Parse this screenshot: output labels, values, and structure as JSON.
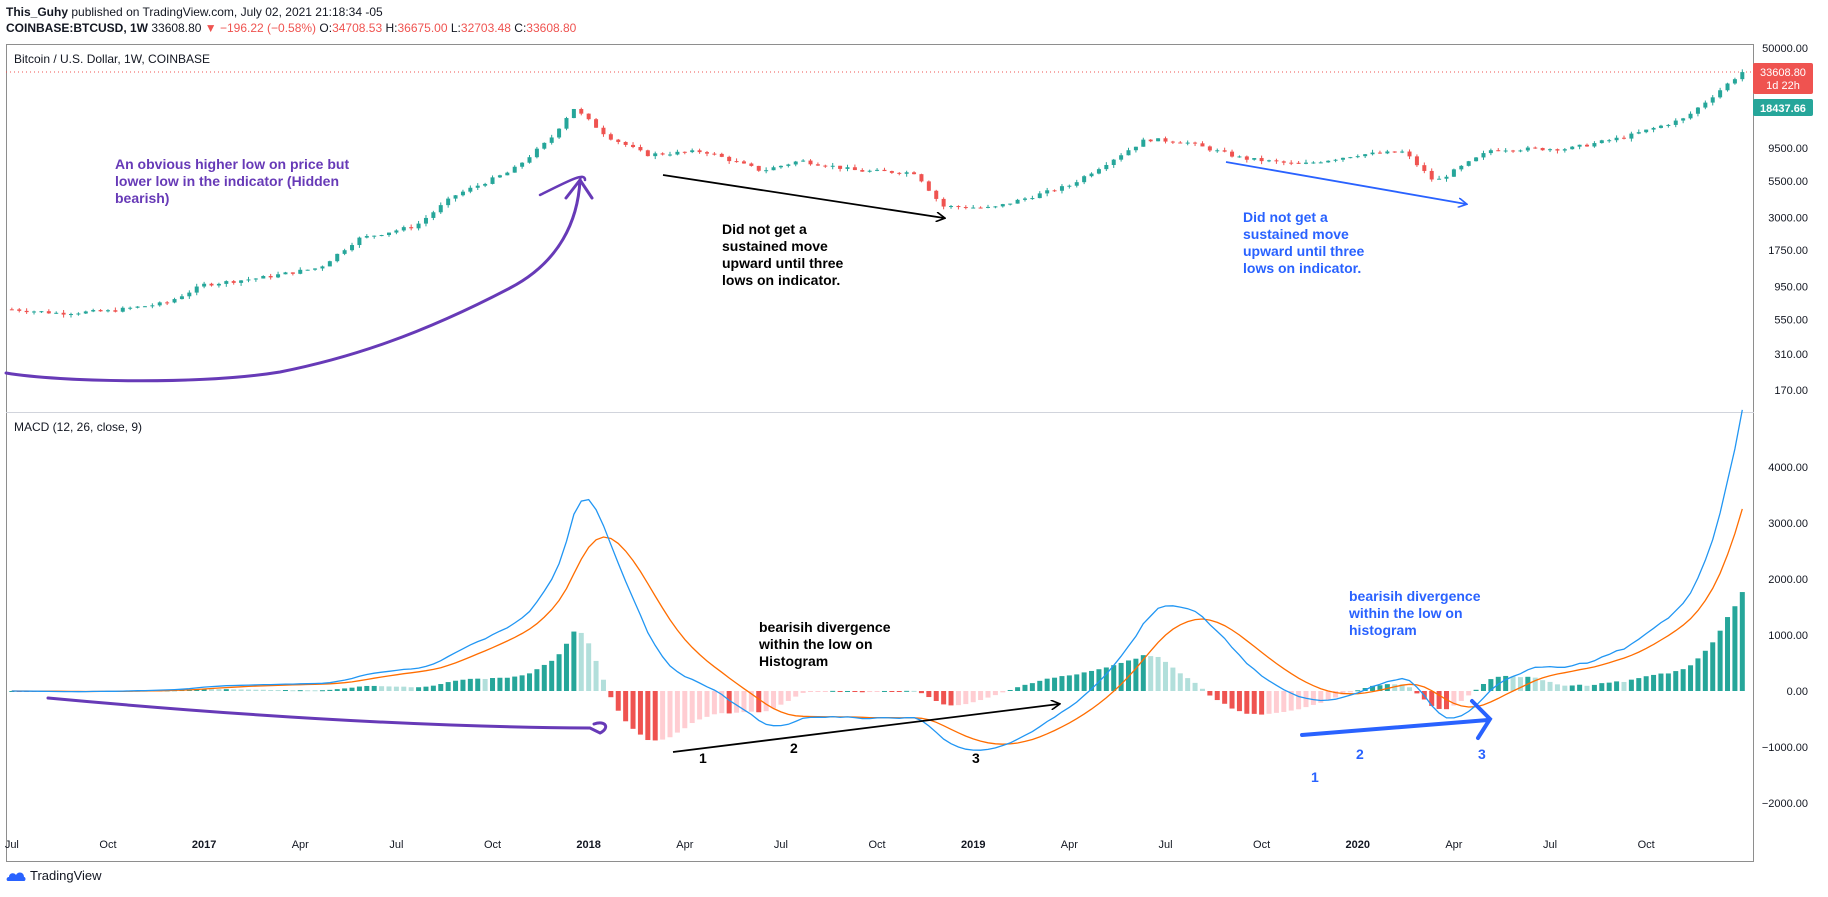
{
  "header": {
    "author": "This_Guhy",
    "published_text": "published on TradingView.com, July 02, 2021 21:18:34 -05",
    "symbol": "COINBASE:BTCUSD, 1W",
    "last": "33608.80",
    "change": "▼ −196.22 (−0.58%)",
    "o_label": "O:",
    "o_value": "34708.53",
    "h_label": "H:",
    "h_value": "36675.00",
    "l_label": "L:",
    "l_value": "32703.48",
    "c_label": "C:",
    "c_value": "33608.80"
  },
  "price_pane": {
    "title": "Bitcoin / U.S. Dollar, 1W, COINBASE"
  },
  "macd_pane": {
    "title": "MACD (12, 26, close, 9)"
  },
  "annotations": {
    "purple_note": [
      "An obvious higher low on price but",
      "lower low in the indicator (Hidden",
      "bearish)"
    ],
    "black_note": [
      "Did not get a",
      "sustained move",
      "upward until three",
      "lows on indicator."
    ],
    "blue_note": [
      "Did not get a",
      "sustained move",
      "upward until three",
      "lows on indicator."
    ],
    "black_hist_note": [
      "bearisih divergence",
      "within the low on",
      "Histogram"
    ],
    "blue_hist_note": [
      "bearisih divergence",
      "within the low on",
      "histogram"
    ],
    "black_low_labels": [
      "1",
      "2",
      "3"
    ],
    "blue_low_labels": [
      "1",
      "2",
      "3"
    ]
  },
  "price_badges": {
    "last_price": "33608.80",
    "countdown": "1d 22h",
    "ma_price": "18437.66"
  },
  "footer": {
    "brand": "TradingView"
  },
  "colors": {
    "up": "#26a69a",
    "down": "#ef5350",
    "hist_up_weak": "#b2dfdb",
    "hist_down_weak": "#ffcdd2",
    "macd": "#2196f3",
    "signal": "#ff6d00",
    "purple": "#673ab7",
    "blue_note": "#2962ff"
  },
  "chart_data": [
    {
      "type": "candlestick",
      "title": "Bitcoin / U.S. Dollar, 1W, COINBASE",
      "y_scale": "log",
      "y_ticks": [
        "50000.00",
        "33608.80",
        "18437.66",
        "9500.00",
        "5500.00",
        "3000.00",
        "1750.00",
        "950.00",
        "550.00",
        "310.00",
        "170.00"
      ],
      "y_tick_values": [
        50000,
        9500,
        5500,
        3000,
        1750,
        950,
        550,
        310,
        170
      ],
      "x_ticks": [
        "Jul",
        "Oct",
        "2017",
        "Apr",
        "Jul",
        "Oct",
        "2018",
        "Apr",
        "Jul",
        "Oct",
        "2019",
        "Apr",
        "Jul",
        "Oct",
        "2020",
        "Apr",
        "Jul",
        "Oct"
      ],
      "close_anchors": [
        [
          2016.5,
          650
        ],
        [
          2016.62,
          610
        ],
        [
          2016.75,
          630
        ],
        [
          2016.9,
          720
        ],
        [
          2017.0,
          980
        ],
        [
          2017.15,
          1100
        ],
        [
          2017.3,
          1300
        ],
        [
          2017.4,
          2100
        ],
        [
          2017.55,
          2600
        ],
        [
          2017.65,
          4300
        ],
        [
          2017.8,
          6500
        ],
        [
          2017.9,
          11000
        ],
        [
          2017.96,
          18500
        ],
        [
          2018.05,
          11500
        ],
        [
          2018.15,
          8500
        ],
        [
          2018.3,
          9000
        ],
        [
          2018.45,
          6500
        ],
        [
          2018.55,
          7700
        ],
        [
          2018.7,
          6500
        ],
        [
          2018.85,
          6300
        ],
        [
          2018.92,
          3600
        ],
        [
          2019.05,
          3500
        ],
        [
          2019.25,
          5100
        ],
        [
          2019.45,
          11000
        ],
        [
          2019.55,
          10500
        ],
        [
          2019.7,
          8000
        ],
        [
          2019.85,
          7200
        ],
        [
          2020.0,
          8500
        ],
        [
          2020.12,
          8900
        ],
        [
          2020.2,
          5400
        ],
        [
          2020.35,
          9300
        ],
        [
          2020.55,
          9400
        ],
        [
          2020.7,
          11500
        ],
        [
          2020.85,
          15500
        ],
        [
          2021.0,
          33608.8
        ]
      ]
    },
    {
      "type": "macd",
      "title": "MACD (12, 26, close, 9)",
      "series": [
        {
          "name": "MACD"
        },
        {
          "name": "Signal"
        },
        {
          "name": "Histogram"
        }
      ],
      "y_ticks": [
        "4000.00",
        "3000.00",
        "2000.00",
        "1000.00",
        "0.00",
        "−1000.00",
        "−2000.00"
      ],
      "y_tick_values": [
        4000,
        3000,
        2000,
        1000,
        0,
        -1000,
        -2000
      ],
      "ylim": [
        -2400,
        4500
      ]
    }
  ]
}
